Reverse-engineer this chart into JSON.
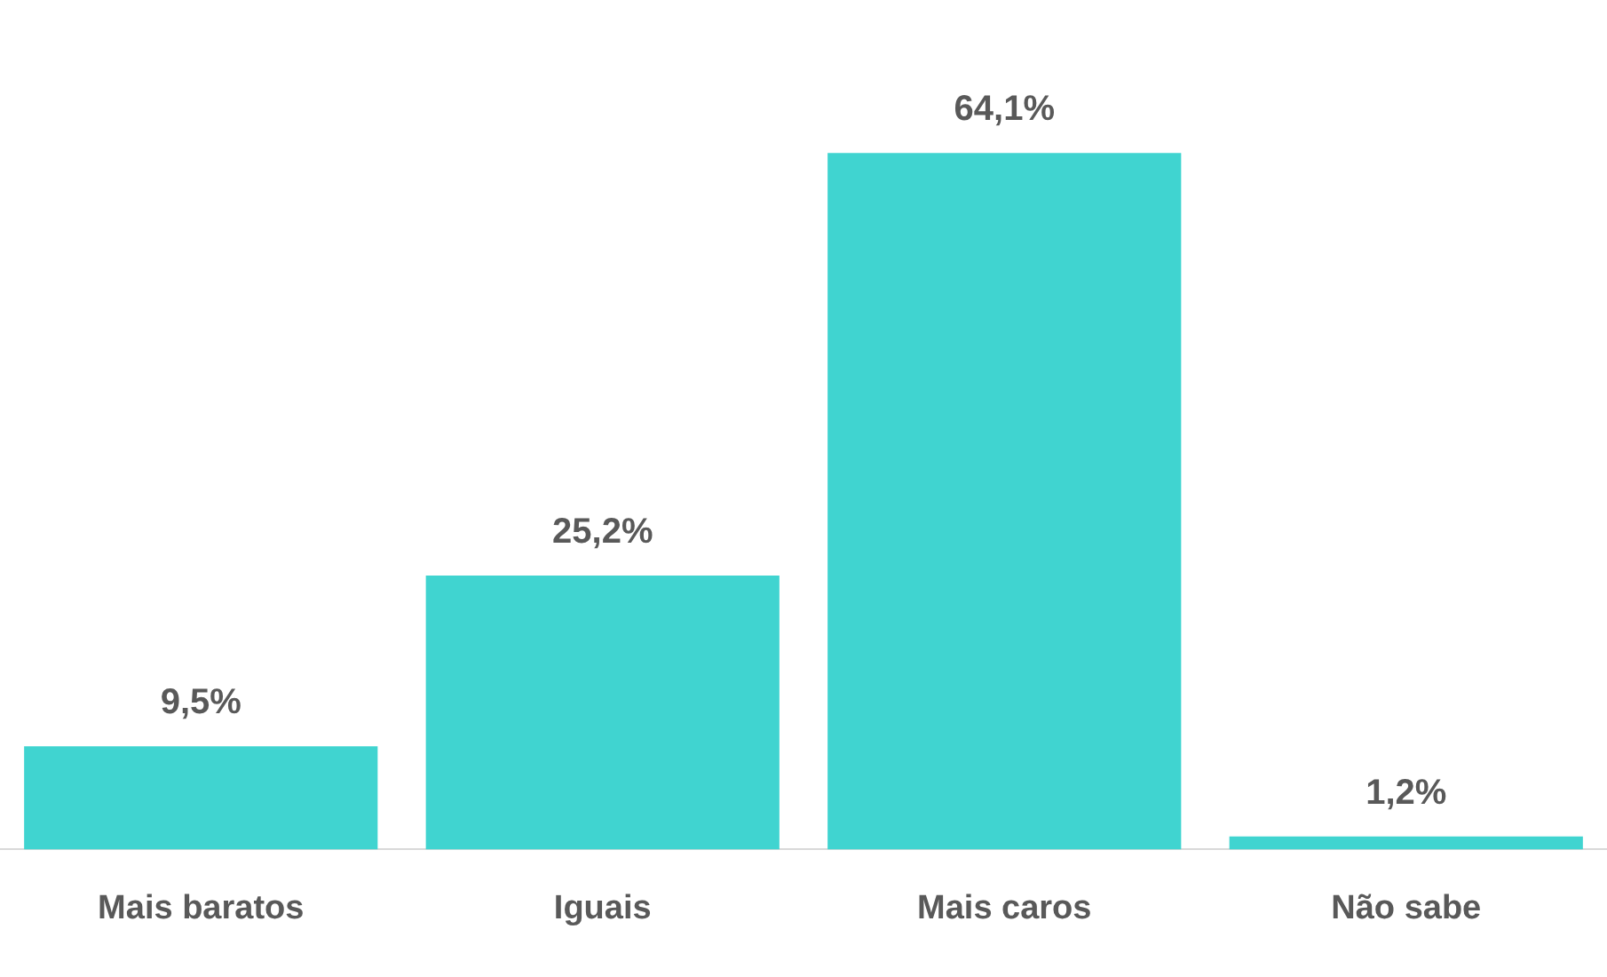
{
  "chart_data": {
    "type": "bar",
    "categories": [
      "Mais baratos",
      "Iguais",
      "Mais caros",
      "Não sabe"
    ],
    "values": [
      9.5,
      25.2,
      64.1,
      1.2
    ],
    "color": "#40d4d0",
    "value_labels": [
      "9,5%",
      "25,2%",
      "64,1%",
      "1,2%"
    ],
    "grid": false,
    "legend": false,
    "tick_labels": "x"
  }
}
